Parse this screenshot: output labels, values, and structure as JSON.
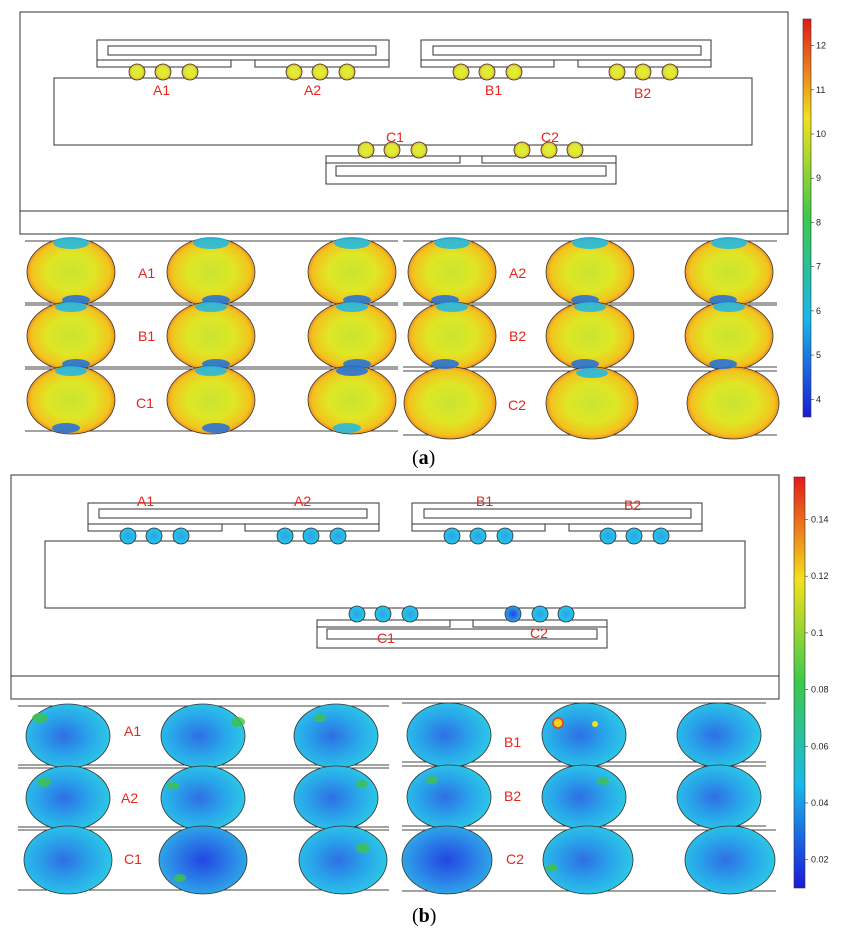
{
  "panel_a": {
    "caption_open": "(",
    "caption_letter": "a",
    "caption_close": ")",
    "top_labels": [
      "A1",
      "A2",
      "B1",
      "B2",
      "C1",
      "C2"
    ],
    "zoom_labels": [
      "A1",
      "A2",
      "B1",
      "B2",
      "C1",
      "C2"
    ],
    "colorbar_ticks": [
      "12",
      "11",
      "10",
      "9",
      "8",
      "7",
      "6",
      "5",
      "4"
    ],
    "colorbar_range": [
      3.6,
      12.6
    ]
  },
  "panel_b": {
    "caption_open": "(",
    "caption_letter": "b",
    "caption_close": ")",
    "top_labels": [
      "A1",
      "A2",
      "B1",
      "B2",
      "C1",
      "C2"
    ],
    "zoom_labels": [
      "A1",
      "B1",
      "A2",
      "B2",
      "C1",
      "C2"
    ],
    "colorbar_ticks": [
      "0.14",
      "0.12",
      "0.1",
      "0.08",
      "0.06",
      "0.04",
      "0.02"
    ],
    "colorbar_range": [
      0.01,
      0.155
    ]
  },
  "colors": {
    "label_red": "#e8241c",
    "cb_red": "#e8241c",
    "cb_yellow": "#f4e21c",
    "cb_green": "#3fc24a",
    "cb_cyan": "#1cc6e6",
    "cb_blue": "#1c1ce6"
  }
}
